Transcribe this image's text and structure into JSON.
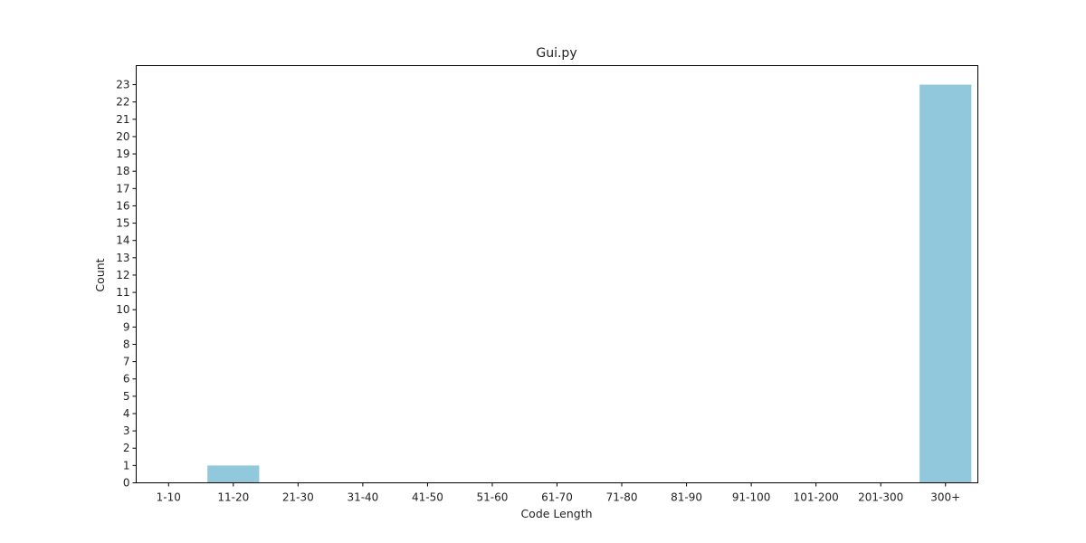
{
  "chart_data": {
    "type": "bar",
    "title": "Gui.py",
    "xlabel": "Code Length",
    "ylabel": "Count",
    "categories": [
      "1-10",
      "11-20",
      "21-30",
      "31-40",
      "41-50",
      "51-60",
      "61-70",
      "71-80",
      "81-90",
      "91-100",
      "101-200",
      "201-300",
      "300+"
    ],
    "values": [
      0,
      1,
      0,
      0,
      0,
      0,
      0,
      0,
      0,
      0,
      0,
      0,
      23
    ],
    "ylim": [
      0,
      24.1
    ],
    "yticks": [
      0,
      1,
      2,
      3,
      4,
      5,
      6,
      7,
      8,
      9,
      10,
      11,
      12,
      13,
      14,
      15,
      16,
      17,
      18,
      19,
      20,
      21,
      22,
      23
    ],
    "bar_color": "#92c8dc",
    "grid": false,
    "legend": "none"
  }
}
